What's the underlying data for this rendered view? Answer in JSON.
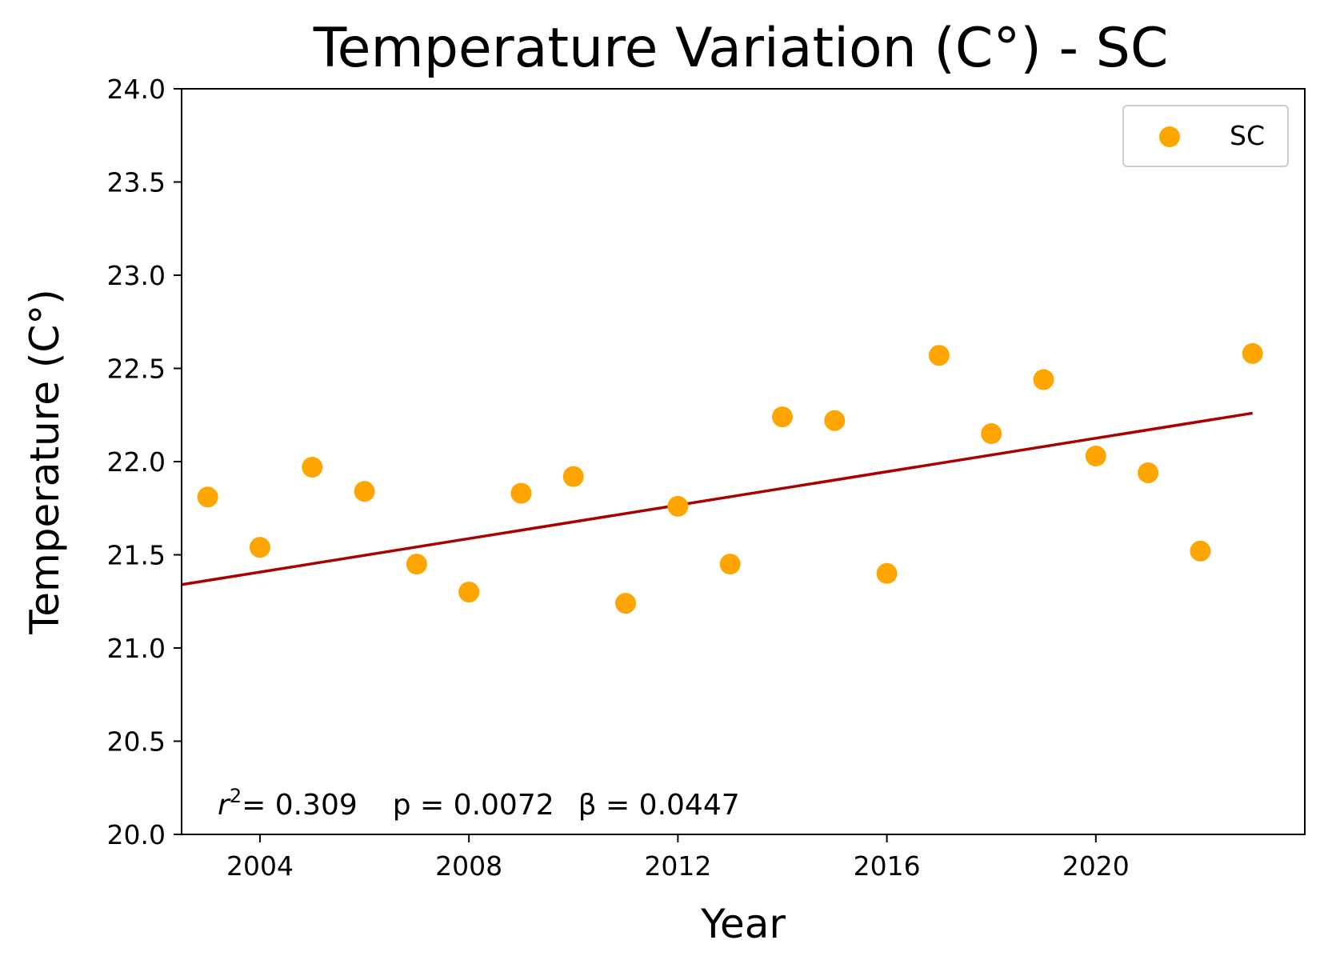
{
  "chart_data": {
    "type": "scatter",
    "title": "Temperature Variation (C°) - SC",
    "xlabel": "Year",
    "ylabel": "Temperature (C°)",
    "xlim": [
      2002.5,
      2024.0
    ],
    "ylim": [
      20.0,
      24.0
    ],
    "xticks": [
      2004,
      2008,
      2012,
      2016,
      2020
    ],
    "yticks": [
      20.0,
      20.5,
      21.0,
      21.5,
      22.0,
      22.5,
      23.0,
      23.5,
      24.0
    ],
    "ytick_labels": [
      "20.0",
      "20.5",
      "21.0",
      "21.5",
      "22.0",
      "22.5",
      "23.0",
      "23.5",
      "24.0"
    ],
    "grid": false,
    "legend": {
      "position": "top-right",
      "entries": [
        "SC"
      ]
    },
    "series": [
      {
        "name": "SC",
        "color": "#ffa500",
        "x": [
          2003,
          2004,
          2005,
          2006,
          2007,
          2008,
          2009,
          2010,
          2011,
          2012,
          2013,
          2014,
          2015,
          2016,
          2017,
          2018,
          2019,
          2020,
          2021,
          2022,
          2023
        ],
        "y": [
          21.81,
          21.54,
          21.97,
          21.84,
          21.45,
          21.3,
          21.83,
          21.92,
          21.24,
          21.76,
          21.45,
          22.24,
          22.22,
          21.4,
          22.57,
          22.15,
          22.44,
          22.03,
          21.94,
          21.52,
          22.58
        ]
      }
    ],
    "trendline": {
      "color": "#aa0000",
      "x": [
        2002.5,
        2023.0
      ],
      "y": [
        21.34,
        22.26
      ]
    },
    "annotation": {
      "r2_value": "= 0.309",
      "p_text": "p = 0.0072",
      "beta_text": "β = 0.0447"
    }
  }
}
